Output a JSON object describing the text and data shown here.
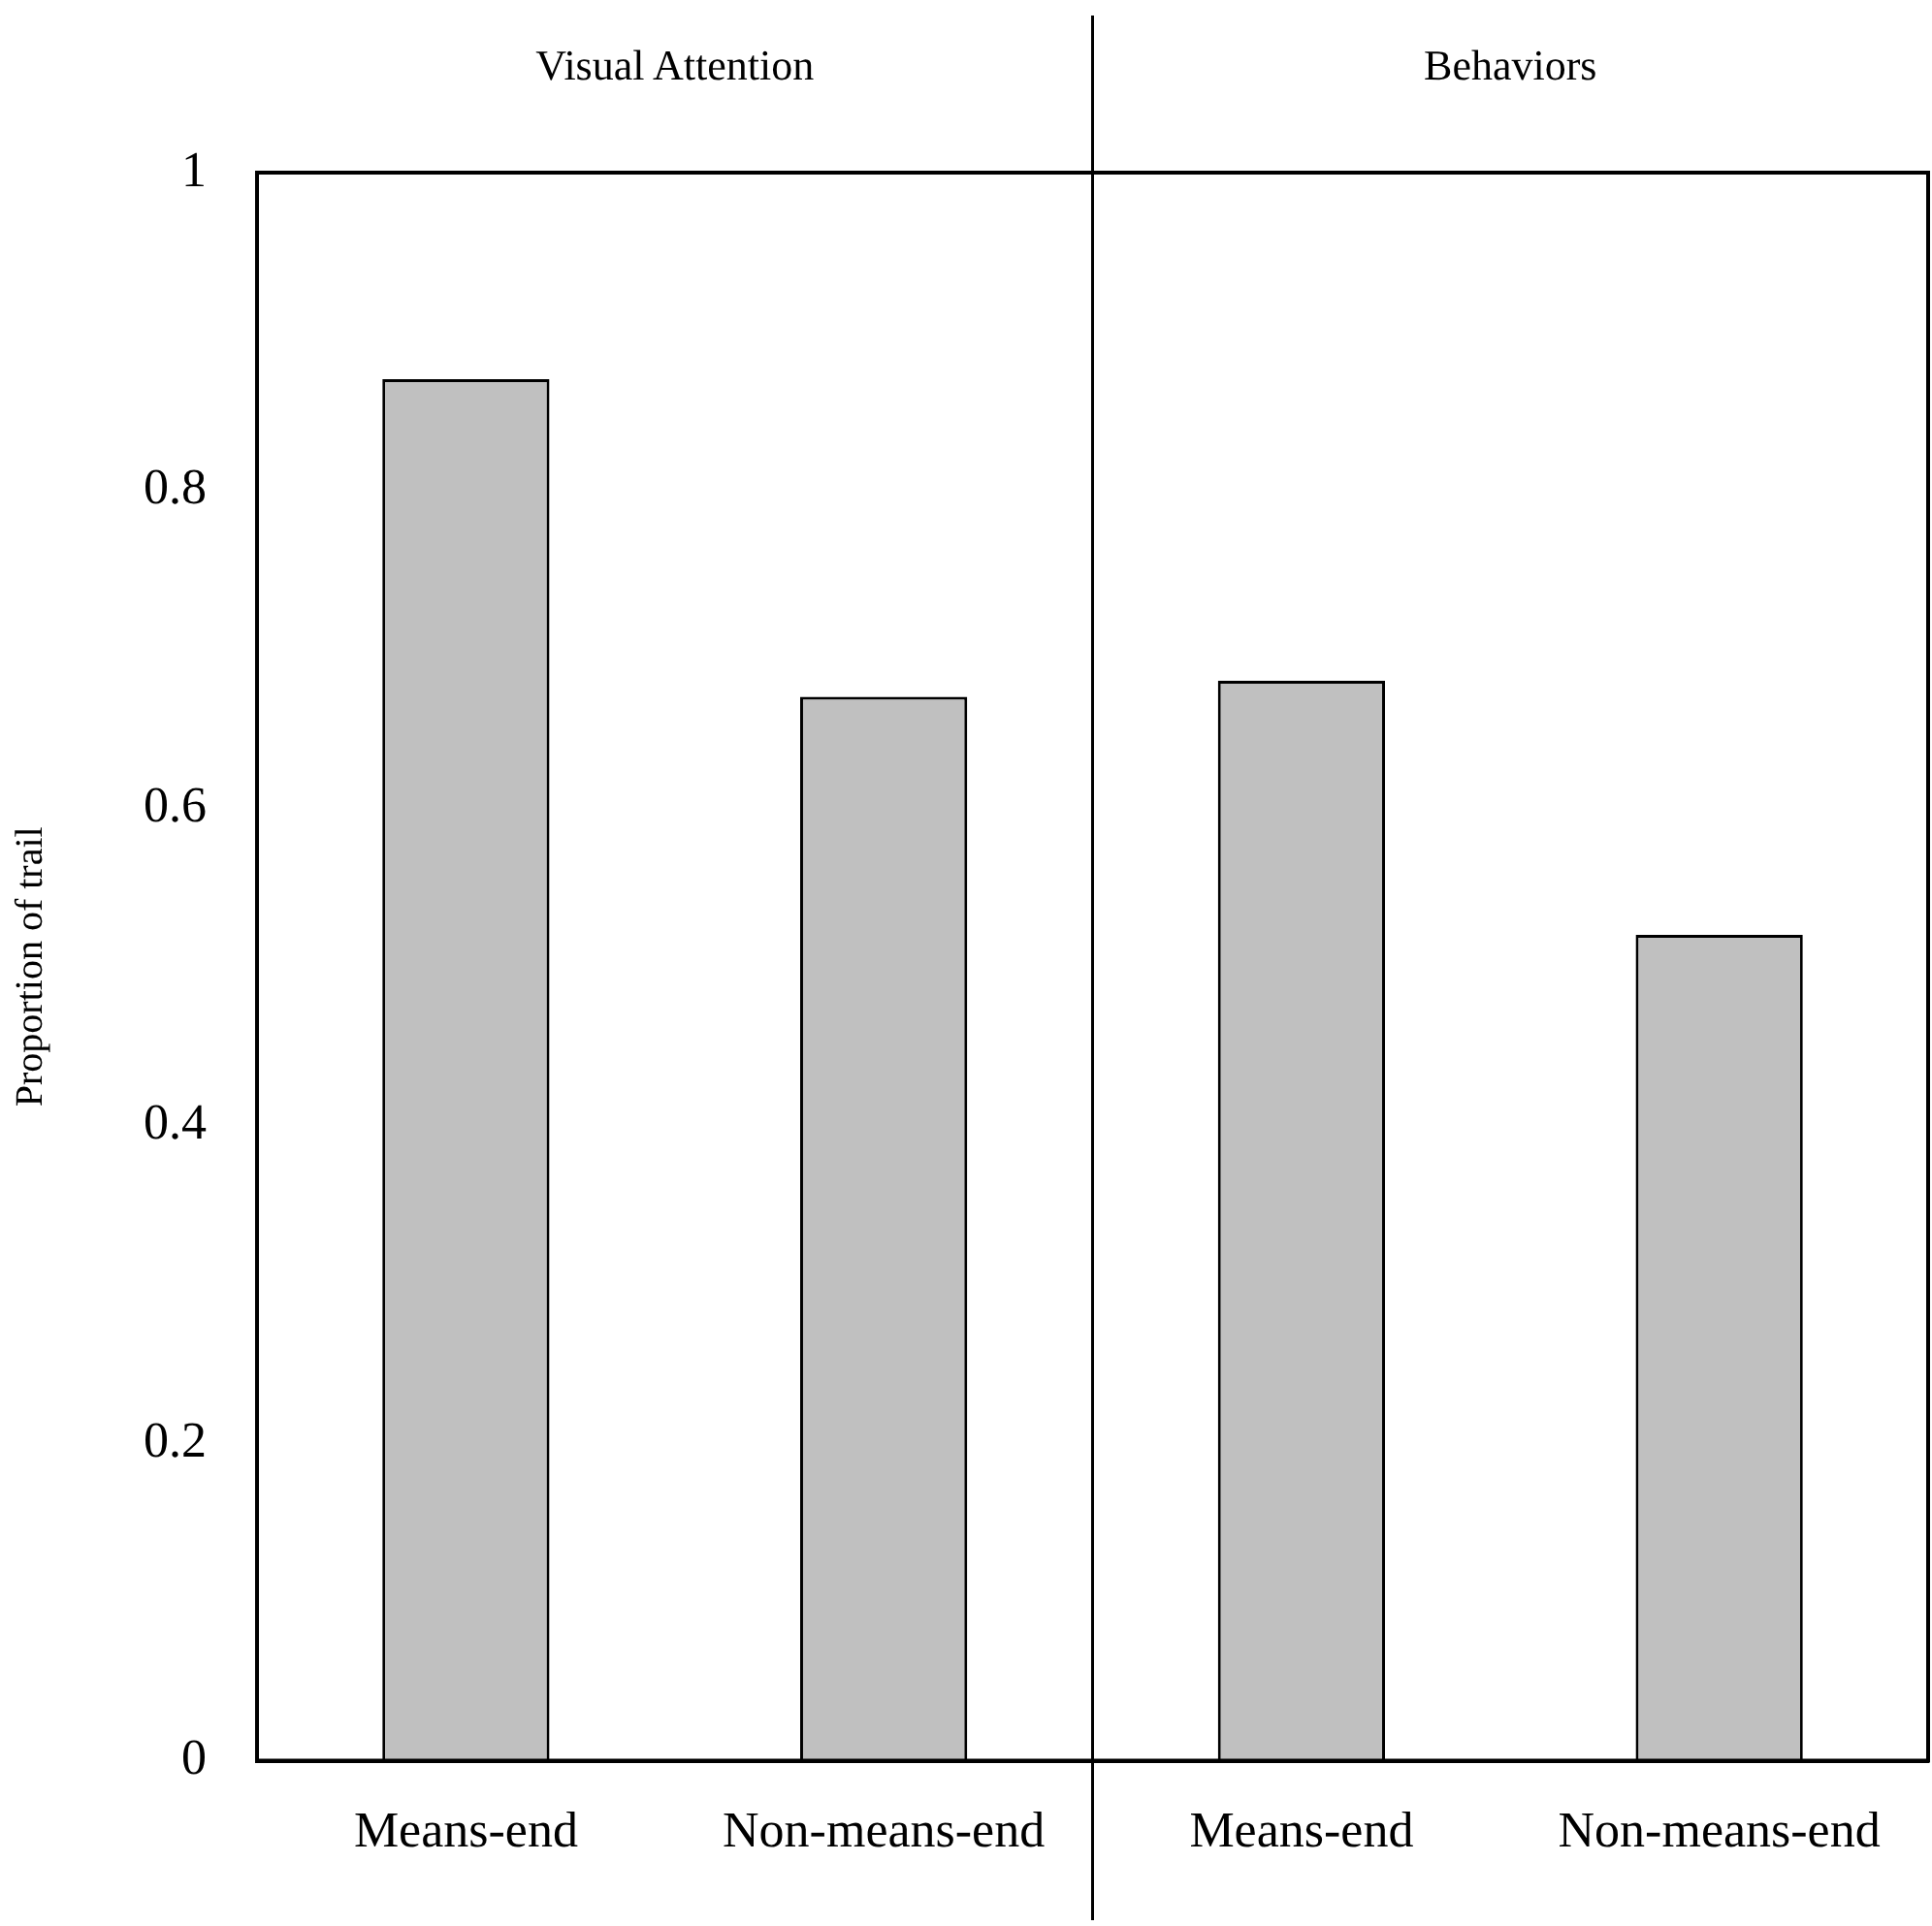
{
  "chart_data": {
    "type": "bar",
    "ylabel": "Proportion of trail",
    "categories": [
      "Means-end",
      "Non-means-end",
      "Means-end",
      "Non-means-end"
    ],
    "values": [
      0.87,
      0.67,
      0.68,
      0.52
    ],
    "color": "#c0c0c0",
    "ylim": [
      0,
      1
    ],
    "yticks": [
      0,
      0.2,
      0.4,
      0.6,
      0.8,
      1
    ],
    "grid": false,
    "legend": false,
    "annotations": [
      "Visual Attention",
      "Behaviors"
    ]
  }
}
